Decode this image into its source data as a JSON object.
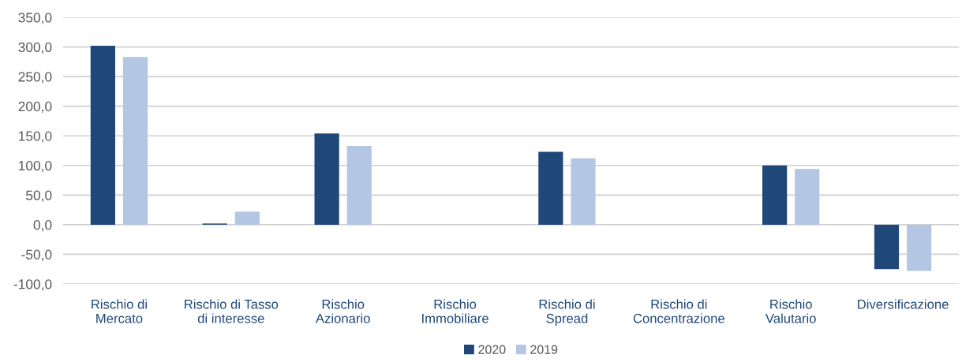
{
  "chart_data": {
    "type": "bar",
    "categories": [
      "Rischio di\nMercato",
      "Rischio di Tasso\ndi interesse",
      "Rischio\nAzionario",
      "Rischio\nImmobiliare",
      "Rischio di\nSpread",
      "Rischio di\nConcentrazione",
      "Rischio\nValutario",
      "Diversificazione"
    ],
    "series": [
      {
        "name": "2020",
        "color": "#1f4778",
        "values": [
          302,
          2,
          154,
          null,
          123,
          null,
          100,
          -75
        ]
      },
      {
        "name": "2019",
        "color": "#b4c7e2",
        "values": [
          283,
          22,
          133,
          null,
          112,
          null,
          94,
          -78
        ]
      }
    ],
    "ylim": [
      -100,
      350
    ],
    "yticks": [
      {
        "value": -100,
        "label": "-100,0"
      },
      {
        "value": -50,
        "label": "-50,0"
      },
      {
        "value": 0,
        "label": "0,0"
      },
      {
        "value": 50,
        "label": "50,0"
      },
      {
        "value": 100,
        "label": "100,0"
      },
      {
        "value": 150,
        "label": "150,0"
      },
      {
        "value": 200,
        "label": "200,0"
      },
      {
        "value": 250,
        "label": "250,0"
      },
      {
        "value": 300,
        "label": "300,0"
      },
      {
        "value": 350,
        "label": "350,0"
      }
    ],
    "grid": "y",
    "legend": "bottom"
  }
}
